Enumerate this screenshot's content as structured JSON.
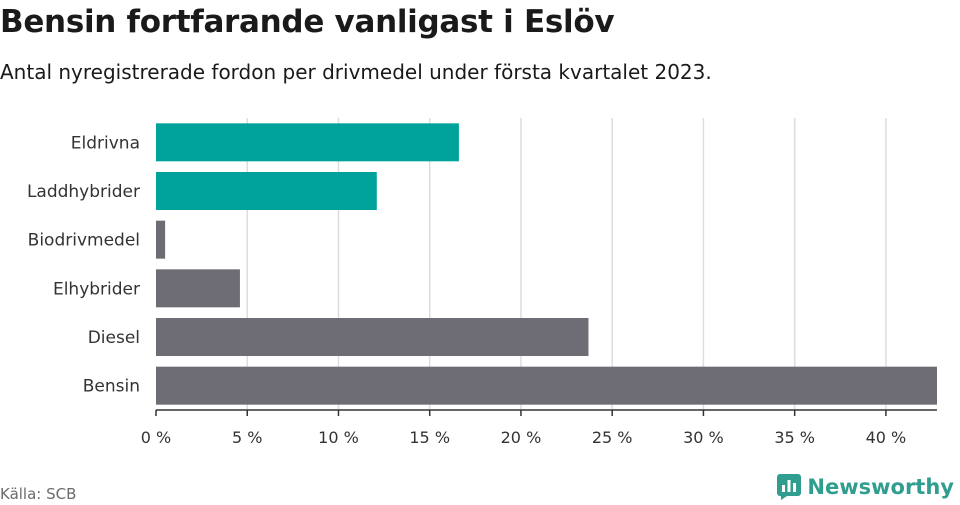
{
  "header": {
    "title": "Bensin fortfarande vanligast i Eslöv",
    "subtitle": "Antal nyregistrerade fordon per drivmedel under första kvartalet 2023."
  },
  "footer": {
    "source": "Källa: SCB",
    "brand": "Newsworthy",
    "brand_icon": "newsworthy-logo-icon"
  },
  "colors": {
    "highlight": "#00a39b",
    "default": "#6e6d75",
    "grid": "#dddddd",
    "brand": "#2f9e8f"
  },
  "chart_data": {
    "type": "bar",
    "orientation": "horizontal",
    "title": "Bensin fortfarande vanligast i Eslöv",
    "subtitle": "Antal nyregistrerade fordon per drivmedel under första kvartalet 2023.",
    "categories": [
      "Eldrivna",
      "Laddhybrider",
      "Biodrivmedel",
      "Elhybrider",
      "Diesel",
      "Bensin"
    ],
    "values": [
      16.6,
      12.1,
      0.5,
      4.6,
      23.7,
      42.8
    ],
    "highlighted": [
      true,
      true,
      false,
      false,
      false,
      false
    ],
    "xlim": [
      0,
      42.8
    ],
    "xticks": [
      0,
      5,
      10,
      15,
      20,
      25,
      30,
      35,
      40
    ],
    "xtick_labels": [
      "0 %",
      "5 %",
      "10 %",
      "15 %",
      "20 %",
      "25 %",
      "30 %",
      "35 %",
      "40 %"
    ],
    "grid": true,
    "legend": "none"
  }
}
